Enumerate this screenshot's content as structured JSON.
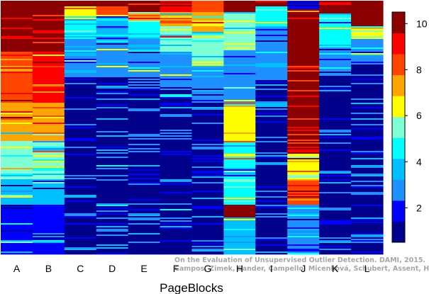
{
  "chart_data": {
    "type": "heatmap",
    "xlabel": "PageBlocks",
    "columns": [
      "A",
      "B",
      "C",
      "D",
      "E",
      "F",
      "G",
      "H",
      "I",
      "J",
      "K",
      "L"
    ],
    "colorbar": {
      "ticks": [
        2,
        4,
        6,
        8,
        10
      ],
      "range": [
        0.5,
        10.5
      ]
    },
    "colorscale": [
      "#00008b",
      "#0000ff",
      "#1e90ff",
      "#00bfff",
      "#00ffff",
      "#7fffd4",
      "#ffff00",
      "#ffa500",
      "#ff4500",
      "#ff0000",
      "#8b0000"
    ],
    "columns_profile": [
      {
        "name": "A",
        "segments": [
          [
            0,
            0.2,
            10
          ],
          [
            0.2,
            0.4,
            8
          ],
          [
            0.4,
            0.55,
            7
          ],
          [
            0.55,
            0.7,
            5
          ],
          [
            0.7,
            0.8,
            3
          ],
          [
            0.8,
            1.0,
            1
          ]
        ]
      },
      {
        "name": "B",
        "segments": [
          [
            0,
            0.2,
            10
          ],
          [
            0.2,
            0.4,
            9
          ],
          [
            0.4,
            0.55,
            7
          ],
          [
            0.55,
            0.7,
            5
          ],
          [
            0.7,
            0.8,
            3
          ],
          [
            0.8,
            1.0,
            1
          ]
        ]
      },
      {
        "name": "C",
        "segments": [
          [
            0,
            0.02,
            10
          ],
          [
            0.02,
            0.06,
            6
          ],
          [
            0.06,
            0.15,
            4
          ],
          [
            0.15,
            0.3,
            2
          ],
          [
            0.3,
            1.0,
            0
          ]
        ]
      },
      {
        "name": "D",
        "segments": [
          [
            0,
            0.02,
            10
          ],
          [
            0.02,
            0.06,
            8
          ],
          [
            0.06,
            0.15,
            3
          ],
          [
            0.15,
            0.3,
            2
          ],
          [
            0.3,
            1.0,
            0
          ]
        ]
      },
      {
        "name": "E",
        "segments": [
          [
            0,
            0.04,
            10
          ],
          [
            0.04,
            0.08,
            7
          ],
          [
            0.08,
            0.15,
            4
          ],
          [
            0.15,
            0.3,
            2
          ],
          [
            0.3,
            1.0,
            0
          ]
        ]
      },
      {
        "name": "F",
        "segments": [
          [
            0,
            0.04,
            9
          ],
          [
            0.04,
            0.1,
            7
          ],
          [
            0.1,
            0.2,
            5
          ],
          [
            0.2,
            0.35,
            2
          ],
          [
            0.35,
            1.0,
            0
          ]
        ]
      },
      {
        "name": "G",
        "segments": [
          [
            0,
            0.04,
            8
          ],
          [
            0.04,
            0.12,
            7
          ],
          [
            0.12,
            0.25,
            5
          ],
          [
            0.25,
            0.4,
            2
          ],
          [
            0.4,
            1.0,
            0
          ]
        ]
      },
      {
        "name": "H",
        "segments": [
          [
            0,
            0.04,
            10
          ],
          [
            0.04,
            0.2,
            5
          ],
          [
            0.2,
            0.4,
            2
          ],
          [
            0.4,
            0.55,
            6
          ],
          [
            0.55,
            0.8,
            4
          ],
          [
            0.8,
            0.85,
            10
          ],
          [
            0.85,
            1.0,
            3
          ]
        ]
      },
      {
        "name": "I",
        "segments": [
          [
            0,
            0.02,
            10
          ],
          [
            0.02,
            0.1,
            4
          ],
          [
            0.1,
            0.3,
            2
          ],
          [
            0.3,
            1.0,
            0
          ]
        ]
      },
      {
        "name": "J",
        "segments": [
          [
            0,
            0.03,
            1
          ],
          [
            0.03,
            0.6,
            10
          ],
          [
            0.6,
            0.7,
            6
          ],
          [
            0.7,
            0.8,
            8
          ],
          [
            0.8,
            1.0,
            2
          ]
        ]
      },
      {
        "name": "K",
        "segments": [
          [
            0,
            0.05,
            10
          ],
          [
            0.05,
            0.18,
            4
          ],
          [
            0.18,
            0.3,
            2
          ],
          [
            0.3,
            1.0,
            0
          ]
        ]
      },
      {
        "name": "L",
        "segments": [
          [
            0,
            0.1,
            10
          ],
          [
            0.1,
            0.15,
            6
          ],
          [
            0.15,
            0.25,
            2
          ],
          [
            0.25,
            1.0,
            0
          ]
        ]
      }
    ]
  },
  "watermark": {
    "line1": "On the Evaluation of Unsupervised Outlier Detection. DAMI, 2015.",
    "line2": "Campos, Zimek, Sander, Campello, Micenková, Schubert, Assent, Houle"
  }
}
